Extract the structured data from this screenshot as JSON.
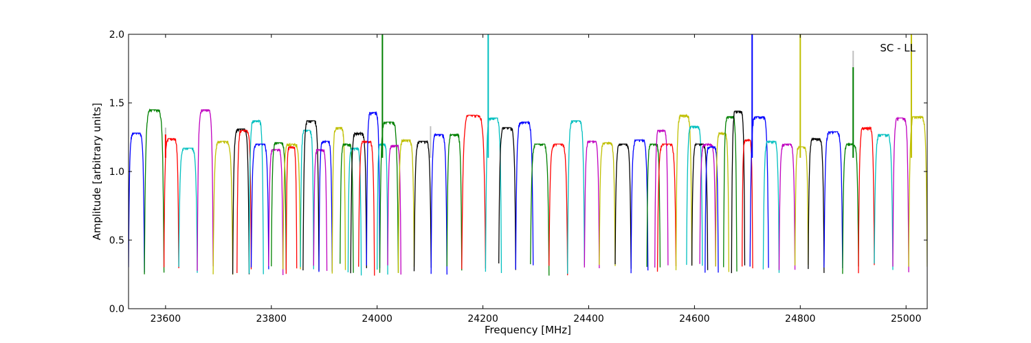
{
  "chart_data": {
    "type": "line",
    "title": "",
    "xlabel": "Frequency [MHz]",
    "ylabel": "Amplitude [arbitrary units]",
    "xlim": [
      23530,
      25040
    ],
    "ylim": [
      0.0,
      2.0
    ],
    "xticks": [
      23600,
      23800,
      24000,
      24200,
      24400,
      24600,
      24800,
      25000
    ],
    "yticks": [
      0.0,
      0.5,
      1.0,
      1.5,
      2.0
    ],
    "ytick_labels": [
      "0.0",
      "0.5",
      "1.0",
      "1.5",
      "2.0"
    ],
    "grid": false,
    "legend": {
      "text": "SC - LL",
      "placement": "top-right"
    },
    "palette": [
      "#0000ff",
      "#008000",
      "#ff0000",
      "#00bfbf",
      "#bf00bf",
      "#bfbf00",
      "#000000"
    ],
    "segments": [
      {
        "start": 23530,
        "end": 23560,
        "peak": 1.28,
        "color": "#0000ff"
      },
      {
        "start": 23560,
        "end": 23597,
        "peak": 1.45,
        "color": "#008000"
      },
      {
        "start": 23597,
        "end": 23625,
        "peak": 1.24,
        "color": "#ff0000"
      },
      {
        "start": 23625,
        "end": 23660,
        "peak": 1.17,
        "color": "#00bfbf"
      },
      {
        "start": 23660,
        "end": 23690,
        "peak": 1.45,
        "color": "#bf00bf"
      },
      {
        "start": 23690,
        "end": 23727,
        "peak": 1.22,
        "color": "#bfbf00"
      },
      {
        "start": 23727,
        "end": 23758,
        "peak": 1.31,
        "color": "#000000"
      },
      {
        "start": 23735,
        "end": 23762,
        "peak": 1.3,
        "color": "#ff0000"
      },
      {
        "start": 23758,
        "end": 23785,
        "peak": 1.37,
        "color": "#00bfbf"
      },
      {
        "start": 23762,
        "end": 23795,
        "peak": 1.2,
        "color": "#0000ff"
      },
      {
        "start": 23795,
        "end": 23822,
        "peak": 1.16,
        "color": "#bf00bf"
      },
      {
        "start": 23800,
        "end": 23828,
        "peak": 1.21,
        "color": "#008000"
      },
      {
        "start": 23822,
        "end": 23855,
        "peak": 1.2,
        "color": "#bfbf00"
      },
      {
        "start": 23828,
        "end": 23848,
        "peak": 1.18,
        "color": "#ff0000"
      },
      {
        "start": 23855,
        "end": 23880,
        "peak": 1.3,
        "color": "#00bfbf"
      },
      {
        "start": 23860,
        "end": 23890,
        "peak": 1.37,
        "color": "#000000"
      },
      {
        "start": 23880,
        "end": 23905,
        "peak": 1.16,
        "color": "#bf00bf"
      },
      {
        "start": 23890,
        "end": 23915,
        "peak": 1.22,
        "color": "#0000ff"
      },
      {
        "start": 23915,
        "end": 23940,
        "peak": 1.32,
        "color": "#bfbf00"
      },
      {
        "start": 23930,
        "end": 23955,
        "peak": 1.2,
        "color": "#008000"
      },
      {
        "start": 23945,
        "end": 23970,
        "peak": 1.17,
        "color": "#00bfbf"
      },
      {
        "start": 23950,
        "end": 23980,
        "peak": 1.28,
        "color": "#000000"
      },
      {
        "start": 23965,
        "end": 23995,
        "peak": 1.22,
        "color": "#ff0000"
      },
      {
        "start": 23980,
        "end": 24005,
        "peak": 1.43,
        "color": "#0000ff"
      },
      {
        "start": 24000,
        "end": 24020,
        "peak": 1.2,
        "color": "#00bfbf"
      },
      {
        "start": 24005,
        "end": 24040,
        "peak": 1.36,
        "color": "#008000"
      },
      {
        "start": 24020,
        "end": 24045,
        "peak": 1.19,
        "color": "#bf00bf"
      },
      {
        "start": 24040,
        "end": 24070,
        "peak": 1.23,
        "color": "#bfbf00"
      },
      {
        "start": 24070,
        "end": 24102,
        "peak": 1.22,
        "color": "#000000"
      },
      {
        "start": 24102,
        "end": 24132,
        "peak": 1.27,
        "color": "#0000ff"
      },
      {
        "start": 24132,
        "end": 24160,
        "peak": 1.27,
        "color": "#008000"
      },
      {
        "start": 24160,
        "end": 24205,
        "peak": 1.41,
        "color": "#ff0000"
      },
      {
        "start": 24205,
        "end": 24235,
        "peak": 1.39,
        "color": "#00bfbf"
      },
      {
        "start": 24230,
        "end": 24262,
        "peak": 1.32,
        "color": "#000000"
      },
      {
        "start": 24262,
        "end": 24295,
        "peak": 1.36,
        "color": "#0000ff"
      },
      {
        "start": 24290,
        "end": 24325,
        "peak": 1.2,
        "color": "#008000"
      },
      {
        "start": 24325,
        "end": 24360,
        "peak": 1.2,
        "color": "#ff0000"
      },
      {
        "start": 24360,
        "end": 24392,
        "peak": 1.37,
        "color": "#00bfbf"
      },
      {
        "start": 24392,
        "end": 24420,
        "peak": 1.22,
        "color": "#bf00bf"
      },
      {
        "start": 24420,
        "end": 24450,
        "peak": 1.21,
        "color": "#bfbf00"
      },
      {
        "start": 24450,
        "end": 24480,
        "peak": 1.2,
        "color": "#000000"
      },
      {
        "start": 24480,
        "end": 24512,
        "peak": 1.23,
        "color": "#0000ff"
      },
      {
        "start": 24510,
        "end": 24535,
        "peak": 1.2,
        "color": "#008000"
      },
      {
        "start": 24525,
        "end": 24550,
        "peak": 1.3,
        "color": "#bf00bf"
      },
      {
        "start": 24530,
        "end": 24565,
        "peak": 1.2,
        "color": "#ff0000"
      },
      {
        "start": 24565,
        "end": 24595,
        "peak": 1.41,
        "color": "#bfbf00"
      },
      {
        "start": 24585,
        "end": 24615,
        "peak": 1.33,
        "color": "#00bfbf"
      },
      {
        "start": 24595,
        "end": 24625,
        "peak": 1.2,
        "color": "#000000"
      },
      {
        "start": 24610,
        "end": 24640,
        "peak": 1.2,
        "color": "#bf00bf"
      },
      {
        "start": 24620,
        "end": 24645,
        "peak": 1.18,
        "color": "#0000ff"
      },
      {
        "start": 24640,
        "end": 24665,
        "peak": 1.28,
        "color": "#bfbf00"
      },
      {
        "start": 24655,
        "end": 24680,
        "peak": 1.4,
        "color": "#008000"
      },
      {
        "start": 24670,
        "end": 24695,
        "peak": 1.44,
        "color": "#000000"
      },
      {
        "start": 24690,
        "end": 24710,
        "peak": 1.23,
        "color": "#ff0000"
      },
      {
        "start": 24705,
        "end": 24740,
        "peak": 1.4,
        "color": "#0000ff"
      },
      {
        "start": 24730,
        "end": 24760,
        "peak": 1.22,
        "color": "#00bfbf"
      },
      {
        "start": 24760,
        "end": 24790,
        "peak": 1.2,
        "color": "#bf00bf"
      },
      {
        "start": 24790,
        "end": 24815,
        "peak": 1.18,
        "color": "#bfbf00"
      },
      {
        "start": 24815,
        "end": 24845,
        "peak": 1.24,
        "color": "#000000"
      },
      {
        "start": 24845,
        "end": 24880,
        "peak": 1.29,
        "color": "#0000ff"
      },
      {
        "start": 24880,
        "end": 24910,
        "peak": 1.2,
        "color": "#008000"
      },
      {
        "start": 24910,
        "end": 24940,
        "peak": 1.32,
        "color": "#ff0000"
      },
      {
        "start": 24940,
        "end": 24975,
        "peak": 1.27,
        "color": "#00bfbf"
      },
      {
        "start": 24975,
        "end": 25005,
        "peak": 1.39,
        "color": "#bf00bf"
      },
      {
        "start": 25005,
        "end": 25040,
        "peak": 1.4,
        "color": "#bfbf00"
      }
    ],
    "spikes": [
      {
        "x": 23600,
        "y": 1.32,
        "color": "#bfbfbf"
      },
      {
        "x": 23600,
        "y": 1.27,
        "color": "#ff0000"
      },
      {
        "x": 24010,
        "y": 2.0,
        "color": "#008000"
      },
      {
        "x": 24101,
        "y": 1.33,
        "color": "#bfbfbf"
      },
      {
        "x": 24210,
        "y": 2.0,
        "color": "#00bfbf"
      },
      {
        "x": 24709,
        "y": 2.0,
        "color": "#0000ff"
      },
      {
        "x": 24800,
        "y": 2.0,
        "color": "#bfbf00"
      },
      {
        "x": 24900,
        "y": 1.88,
        "color": "#bfbfbf"
      },
      {
        "x": 24900,
        "y": 1.76,
        "color": "#008000"
      },
      {
        "x": 25010,
        "y": 2.0,
        "color": "#bfbf00"
      }
    ]
  }
}
